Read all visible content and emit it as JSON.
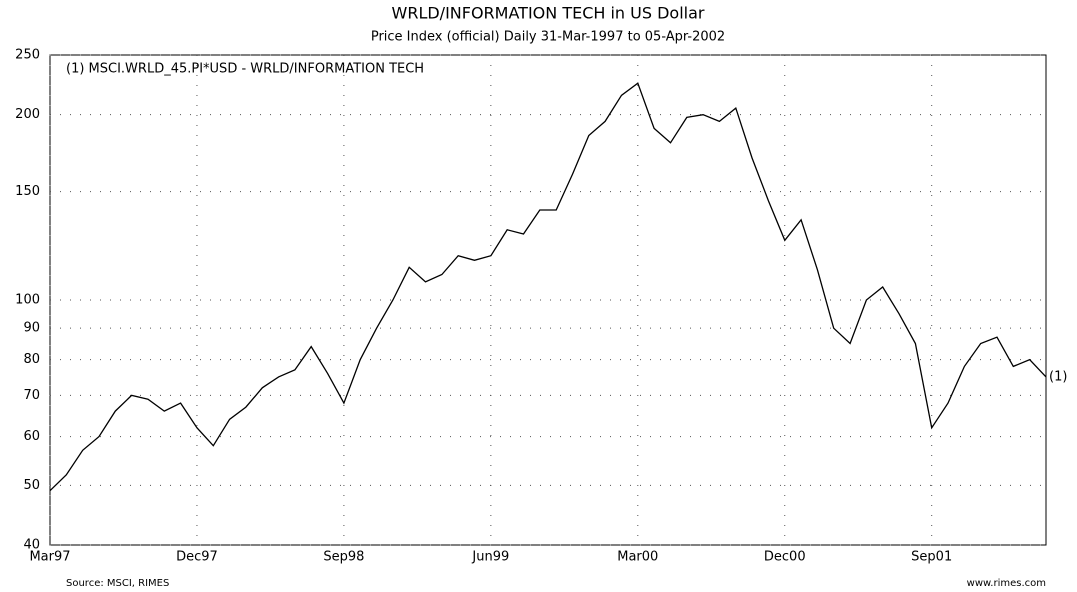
{
  "chart_data": {
    "type": "line",
    "title": "WRLD/INFORMATION TECH in US Dollar",
    "subtitle": "Price Index (official) Daily 31-Mar-1997 to 05-Apr-2002",
    "source": "Source: MSCI, RIMES",
    "credit": "www.rimes.com",
    "categories": [
      "Mar97",
      null,
      null,
      null,
      null,
      null,
      null,
      null,
      null,
      "Dec97",
      null,
      null,
      null,
      null,
      null,
      null,
      null,
      null,
      "Sep98",
      null,
      null,
      null,
      null,
      null,
      null,
      null,
      null,
      "Jun99",
      null,
      null,
      null,
      null,
      null,
      null,
      null,
      null,
      "Mar00",
      null,
      null,
      null,
      null,
      null,
      null,
      null,
      null,
      "Dec00",
      null,
      null,
      null,
      null,
      null,
      null,
      null,
      null,
      "Sep01",
      null,
      null,
      null,
      null,
      null,
      null,
      null
    ],
    "series": [
      {
        "name": "(1)   MSCI.WRLD_45.PI*USD - WRLD/INFORMATION TECH",
        "label": "(1)",
        "color": "#000000",
        "values": [
          49,
          52,
          57,
          60,
          66,
          70,
          69,
          66,
          68,
          62,
          58,
          64,
          67,
          72,
          75,
          77,
          84,
          76,
          68,
          80,
          90,
          100,
          113,
          107,
          110,
          118,
          116,
          118,
          130,
          128,
          140,
          140,
          160,
          185,
          195,
          215,
          225,
          190,
          180,
          198,
          200,
          195,
          205,
          170,
          145,
          125,
          135,
          112,
          90,
          85,
          100,
          105,
          95,
          85,
          62,
          68,
          78,
          85,
          87,
          78,
          80,
          75
        ]
      }
    ],
    "ylim": [
      40,
      250
    ],
    "yticks": [
      40,
      50,
      60,
      70,
      80,
      90,
      100,
      150,
      200,
      250
    ],
    "log_y": true,
    "grid": true
  }
}
